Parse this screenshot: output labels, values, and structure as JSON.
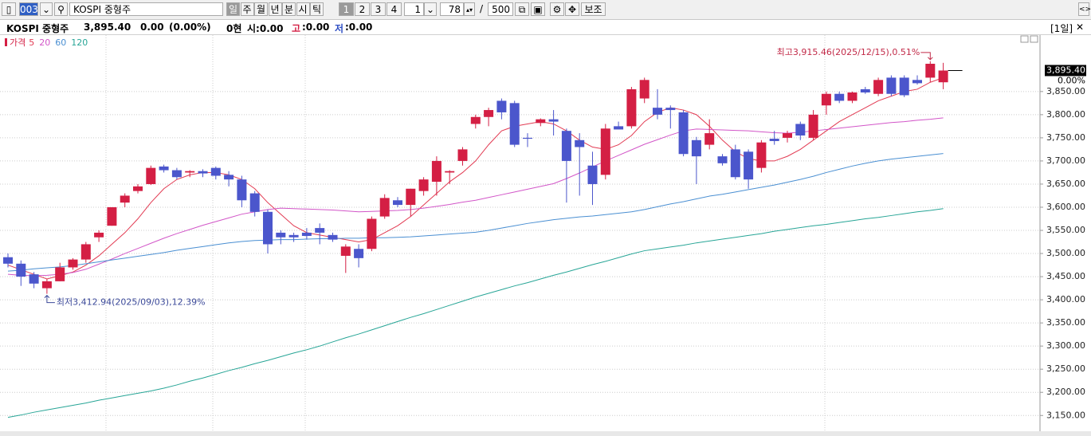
{
  "toolbar": {
    "code": "003",
    "name": "KOSPI 중형주",
    "periods": [
      "일",
      "주",
      "월",
      "년",
      "분",
      "시",
      "틱"
    ],
    "pages": [
      "1",
      "2",
      "3",
      "4"
    ],
    "count": "1",
    "visible": "78",
    "separator": "/",
    "total": "500",
    "aux": "보조"
  },
  "header": {
    "name": "KOSPI 중형주",
    "price": "3,895.40",
    "change": "0.00",
    "rate": "(0.00%)",
    "volume": "0현",
    "open": "시:0.00",
    "high_label": "고",
    "high": ":0.00",
    "low_label": "저",
    "low": ":0.00",
    "period": "[1일]"
  },
  "chart_data": {
    "type": "candlestick",
    "price_name": "가격",
    "up_color": "#d41f44",
    "down_color": "#4b56cc",
    "open": [
      3492,
      3478,
      3455,
      3425,
      3440,
      3470,
      3487,
      3535,
      3560,
      3610,
      3635,
      3650,
      3688,
      3680,
      3675,
      3678,
      3685,
      3670,
      3660,
      3630,
      3590,
      3545,
      3540,
      3545,
      3555,
      3540,
      3495,
      3510,
      3510,
      3580,
      3615,
      3605,
      3635,
      3655,
      3675,
      3700,
      3780,
      3795,
      3830,
      3825,
      3750,
      3782,
      3790,
      3765,
      3745,
      3690,
      3670,
      3775,
      3775,
      3835,
      3815,
      3815,
      3805,
      3745,
      3735,
      3710,
      3725,
      3720,
      3685,
      3748,
      3750,
      3780,
      3750,
      3820,
      3845,
      3830,
      3855,
      3845,
      3880,
      3880,
      3875,
      3880,
      3870
    ],
    "high": [
      3500,
      3485,
      3460,
      3445,
      3480,
      3490,
      3525,
      3550,
      3600,
      3630,
      3650,
      3690,
      3692,
      3685,
      3680,
      3682,
      3688,
      3678,
      3668,
      3635,
      3595,
      3550,
      3545,
      3555,
      3565,
      3545,
      3520,
      3520,
      3580,
      3628,
      3622,
      3640,
      3665,
      3710,
      3680,
      3730,
      3800,
      3815,
      3835,
      3830,
      3760,
      3792,
      3810,
      3770,
      3760,
      3720,
      3780,
      3785,
      3860,
      3880,
      3855,
      3820,
      3810,
      3752,
      3790,
      3715,
      3735,
      3725,
      3745,
      3765,
      3765,
      3785,
      3810,
      3850,
      3850,
      3850,
      3860,
      3880,
      3885,
      3885,
      3885,
      3915.46,
      3912
    ],
    "low": [
      3470,
      3430,
      3425,
      3412.94,
      3440,
      3465,
      3480,
      3525,
      3560,
      3600,
      3630,
      3648,
      3675,
      3660,
      3665,
      3665,
      3660,
      3645,
      3600,
      3580,
      3500,
      3520,
      3525,
      3530,
      3520,
      3525,
      3458,
      3470,
      3505,
      3575,
      3600,
      3580,
      3625,
      3625,
      3650,
      3690,
      3770,
      3775,
      3790,
      3730,
      3730,
      3775,
      3755,
      3610,
      3625,
      3605,
      3660,
      3770,
      3770,
      3825,
      3790,
      3770,
      3710,
      3650,
      3725,
      3690,
      3660,
      3640,
      3675,
      3735,
      3740,
      3745,
      3745,
      3800,
      3825,
      3825,
      3845,
      3840,
      3840,
      3838,
      3865,
      3870,
      3855
    ],
    "close": [
      3478,
      3450,
      3435,
      3440,
      3470,
      3487,
      3520,
      3545,
      3600,
      3625,
      3645,
      3685,
      3680,
      3665,
      3678,
      3673,
      3668,
      3660,
      3615,
      3590,
      3520,
      3535,
      3535,
      3538,
      3545,
      3530,
      3515,
      3490,
      3575,
      3620,
      3605,
      3640,
      3660,
      3700,
      3678,
      3725,
      3795,
      3810,
      3805,
      3735,
      3748,
      3790,
      3785,
      3700,
      3730,
      3650,
      3770,
      3768,
      3855,
      3875,
      3800,
      3810,
      3715,
      3710,
      3760,
      3695,
      3665,
      3660,
      3740,
      3743,
      3760,
      3755,
      3800,
      3845,
      3830,
      3848,
      3848,
      3875,
      3845,
      3842,
      3868,
      3910,
      3895.4
    ],
    "lines": [
      {
        "name": "5",
        "color": "#e23a52",
        "values": [
          3475,
          3465,
          3455,
          3445,
          3452,
          3460,
          3475,
          3495,
          3520,
          3545,
          3575,
          3610,
          3640,
          3660,
          3670,
          3675,
          3675,
          3670,
          3660,
          3640,
          3610,
          3585,
          3560,
          3545,
          3540,
          3535,
          3530,
          3525,
          3530,
          3545,
          3560,
          3580,
          3605,
          3630,
          3655,
          3675,
          3700,
          3735,
          3765,
          3775,
          3780,
          3785,
          3780,
          3765,
          3745,
          3730,
          3725,
          3735,
          3755,
          3785,
          3805,
          3815,
          3810,
          3800,
          3775,
          3745,
          3720,
          3705,
          3700,
          3700,
          3710,
          3725,
          3745,
          3765,
          3785,
          3800,
          3815,
          3830,
          3840,
          3850,
          3855,
          3870,
          3880
        ]
      },
      {
        "name": "20",
        "color": "#d256c8",
        "values": [
          3455,
          3453,
          3452,
          3453,
          3455,
          3459,
          3466,
          3477,
          3488,
          3500,
          3511,
          3522,
          3533,
          3543,
          3552,
          3561,
          3569,
          3577,
          3585,
          3590,
          3595,
          3598,
          3597,
          3596,
          3595,
          3594,
          3592,
          3590,
          3591,
          3592,
          3593,
          3595,
          3598,
          3602,
          3606,
          3611,
          3615,
          3621,
          3627,
          3633,
          3639,
          3645,
          3651,
          3662,
          3674,
          3687,
          3700,
          3712,
          3724,
          3736,
          3746,
          3756,
          3765,
          3769,
          3768,
          3767,
          3766,
          3765,
          3763,
          3761,
          3760,
          3762,
          3765,
          3768,
          3771,
          3774,
          3777,
          3780,
          3783,
          3785,
          3788,
          3790,
          3793
        ]
      },
      {
        "name": "60",
        "color": "#4a8fd2",
        "values": [
          3462,
          3464,
          3467,
          3469,
          3471,
          3474,
          3478,
          3482,
          3486,
          3490,
          3494,
          3498,
          3502,
          3507,
          3511,
          3515,
          3519,
          3523,
          3526,
          3528,
          3529,
          3530,
          3530,
          3531,
          3532,
          3532,
          3533,
          3533,
          3534,
          3534,
          3535,
          3536,
          3538,
          3540,
          3542,
          3544,
          3546,
          3550,
          3555,
          3560,
          3565,
          3569,
          3573,
          3576,
          3579,
          3581,
          3584,
          3587,
          3590,
          3595,
          3601,
          3607,
          3612,
          3618,
          3624,
          3628,
          3633,
          3638,
          3643,
          3648,
          3654,
          3660,
          3667,
          3675,
          3682,
          3689,
          3695,
          3700,
          3704,
          3707,
          3710,
          3713,
          3716
        ]
      },
      {
        "name": "120",
        "color": "#27a596",
        "values": [
          3146,
          3151,
          3157,
          3162,
          3167,
          3172,
          3177,
          3183,
          3188,
          3193,
          3198,
          3203,
          3209,
          3216,
          3224,
          3231,
          3239,
          3247,
          3254,
          3262,
          3269,
          3277,
          3285,
          3292,
          3300,
          3309,
          3318,
          3326,
          3335,
          3344,
          3353,
          3362,
          3370,
          3379,
          3388,
          3397,
          3406,
          3414,
          3422,
          3430,
          3437,
          3445,
          3453,
          3460,
          3468,
          3476,
          3483,
          3491,
          3499,
          3506,
          3510,
          3514,
          3518,
          3523,
          3527,
          3531,
          3535,
          3539,
          3543,
          3548,
          3552,
          3556,
          3560,
          3563,
          3567,
          3571,
          3575,
          3578,
          3582,
          3586,
          3590,
          3593,
          3597
        ]
      }
    ],
    "ylim": [
      3116,
      3972
    ],
    "yticks": [
      {
        "value": 3150,
        "label": "3,150.00"
      },
      {
        "value": 3200,
        "label": "3,200.00"
      },
      {
        "value": 3250,
        "label": "3,250.00"
      },
      {
        "value": 3300,
        "label": "3,300.00"
      },
      {
        "value": 3350,
        "label": "3,350.00"
      },
      {
        "value": 3400,
        "label": "3,400.00"
      },
      {
        "value": 3450,
        "label": "3,450.00"
      },
      {
        "value": 3500,
        "label": "3,500.00"
      },
      {
        "value": 3550,
        "label": "3,550.00"
      },
      {
        "value": 3600,
        "label": "3,600.00"
      },
      {
        "value": 3650,
        "label": "3,650.00"
      },
      {
        "value": 3700,
        "label": "3,700.00"
      },
      {
        "value": 3750,
        "label": "3,750.00"
      },
      {
        "value": 3800,
        "label": "3,800.00"
      },
      {
        "value": 3850,
        "label": "3,850.00"
      }
    ],
    "grid": true,
    "last_price": {
      "value": 3895.4,
      "label": "3,895.40"
    },
    "last_change": "0.00%",
    "max_note": {
      "value": 3915.46,
      "label": "최고3,915.46(2025/12/15),0.51%"
    },
    "min_note": {
      "value": 3412.94,
      "label": "최저3,412.94(2025/09/03),12.39%"
    }
  }
}
